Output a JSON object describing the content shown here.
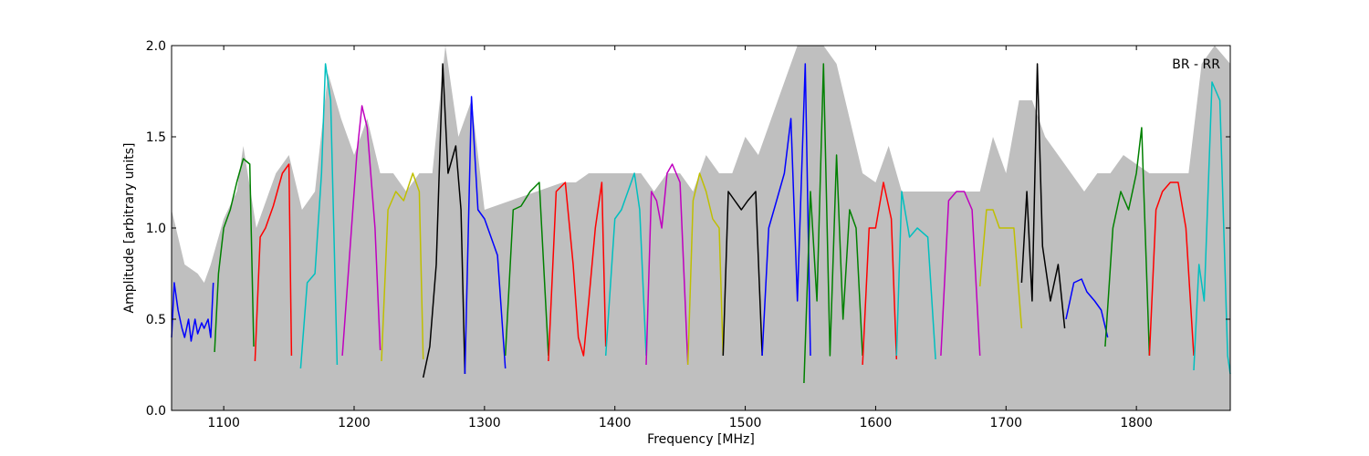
{
  "chart_data": {
    "type": "line",
    "title": "",
    "annotation": "BR - RR",
    "xlabel": "Frequency [MHz]",
    "ylabel": "Amplitude [arbitrary units]",
    "xlim": [
      1060,
      1872
    ],
    "ylim": [
      0.0,
      2.0
    ],
    "xticks": [
      1100,
      1200,
      1300,
      1400,
      1500,
      1600,
      1700,
      1800
    ],
    "yticks": [
      0.0,
      0.5,
      1.0,
      1.5,
      2.0
    ],
    "ytick_labels": [
      "0.0",
      "0.5",
      "1.0",
      "1.5",
      "2.0"
    ],
    "grid": false,
    "background_envelope": {
      "color": "#bfbfbf",
      "x": [
        1060,
        1070,
        1080,
        1085,
        1090,
        1100,
        1110,
        1115,
        1125,
        1135,
        1140,
        1150,
        1160,
        1170,
        1180,
        1190,
        1200,
        1210,
        1220,
        1230,
        1240,
        1250,
        1260,
        1270,
        1280,
        1290,
        1300,
        1320,
        1340,
        1360,
        1370,
        1380,
        1390,
        1400,
        1410,
        1420,
        1430,
        1440,
        1450,
        1460,
        1470,
        1480,
        1490,
        1500,
        1510,
        1520,
        1530,
        1540,
        1550,
        1560,
        1570,
        1580,
        1590,
        1600,
        1610,
        1620,
        1630,
        1640,
        1650,
        1660,
        1680,
        1690,
        1700,
        1710,
        1720,
        1730,
        1740,
        1750,
        1760,
        1770,
        1780,
        1790,
        1800,
        1810,
        1820,
        1830,
        1840,
        1850,
        1860,
        1872
      ],
      "y": [
        1.1,
        0.8,
        0.75,
        0.7,
        0.8,
        1.05,
        1.2,
        1.45,
        1.0,
        1.2,
        1.3,
        1.4,
        1.1,
        1.2,
        1.85,
        1.6,
        1.4,
        1.6,
        1.3,
        1.3,
        1.2,
        1.3,
        1.3,
        2.0,
        1.5,
        1.7,
        1.1,
        1.15,
        1.2,
        1.25,
        1.25,
        1.3,
        1.3,
        1.3,
        1.3,
        1.3,
        1.2,
        1.3,
        1.3,
        1.2,
        1.4,
        1.3,
        1.3,
        1.5,
        1.4,
        1.6,
        1.8,
        2.0,
        2.0,
        2.0,
        1.9,
        1.6,
        1.3,
        1.25,
        1.45,
        1.2,
        1.2,
        1.2,
        1.2,
        1.2,
        1.2,
        1.5,
        1.3,
        1.7,
        1.7,
        1.5,
        1.4,
        1.3,
        1.2,
        1.3,
        1.3,
        1.4,
        1.35,
        1.3,
        1.3,
        1.3,
        1.3,
        1.9,
        2.0,
        1.9
      ]
    },
    "series": [
      {
        "color": "#0000ff",
        "x": [
          1060,
          1062,
          1065,
          1068,
          1070,
          1073,
          1075,
          1078,
          1080,
          1083,
          1085,
          1088,
          1090,
          1092
        ],
        "y": [
          0.4,
          0.7,
          0.55,
          0.45,
          0.4,
          0.5,
          0.38,
          0.5,
          0.42,
          0.48,
          0.45,
          0.5,
          0.4,
          0.7
        ]
      },
      {
        "color": "#008000",
        "x": [
          1093,
          1096,
          1100,
          1105,
          1110,
          1115,
          1120,
          1123
        ],
        "y": [
          0.32,
          0.75,
          1.0,
          1.1,
          1.25,
          1.38,
          1.35,
          0.35
        ]
      },
      {
        "color": "#ff0000",
        "x": [
          1124,
          1128,
          1132,
          1138,
          1145,
          1150,
          1152
        ],
        "y": [
          0.27,
          0.95,
          1.0,
          1.12,
          1.3,
          1.35,
          0.3
        ]
      },
      {
        "color": "#00bfbf",
        "x": [
          1159,
          1164,
          1170,
          1175,
          1178,
          1182,
          1187
        ],
        "y": [
          0.23,
          0.7,
          0.75,
          1.3,
          1.9,
          1.7,
          0.25
        ]
      },
      {
        "color": "#bf00bf",
        "x": [
          1191,
          1196,
          1202,
          1206,
          1210,
          1216,
          1220
        ],
        "y": [
          0.3,
          0.8,
          1.4,
          1.67,
          1.55,
          1.0,
          0.33
        ]
      },
      {
        "color": "#bfbf00",
        "x": [
          1221,
          1226,
          1232,
          1238,
          1245,
          1250,
          1253
        ],
        "y": [
          0.27,
          1.1,
          1.2,
          1.15,
          1.3,
          1.2,
          0.28
        ]
      },
      {
        "color": "#000000",
        "x": [
          1253,
          1258,
          1263,
          1268,
          1272,
          1278,
          1282,
          1285
        ],
        "y": [
          0.18,
          0.35,
          0.8,
          1.9,
          1.3,
          1.45,
          1.1,
          0.2
        ]
      },
      {
        "color": "#0000ff",
        "x": [
          1285,
          1290,
          1295,
          1300,
          1305,
          1310,
          1316
        ],
        "y": [
          0.2,
          1.72,
          1.1,
          1.05,
          0.95,
          0.85,
          0.23
        ]
      },
      {
        "color": "#008000",
        "x": [
          1316,
          1322,
          1328,
          1335,
          1342,
          1349
        ],
        "y": [
          0.3,
          1.1,
          1.12,
          1.2,
          1.25,
          0.3
        ]
      },
      {
        "color": "#ff0000",
        "x": [
          1349,
          1355,
          1362,
          1368,
          1372,
          1376,
          1380,
          1385,
          1390,
          1393
        ],
        "y": [
          0.27,
          1.2,
          1.25,
          0.8,
          0.4,
          0.3,
          0.6,
          1.0,
          1.25,
          0.35
        ]
      },
      {
        "color": "#00bfbf",
        "x": [
          1393,
          1400,
          1405,
          1410,
          1415,
          1419,
          1424
        ],
        "y": [
          0.3,
          1.05,
          1.1,
          1.2,
          1.3,
          1.1,
          0.3
        ]
      },
      {
        "color": "#bf00bf",
        "x": [
          1424,
          1428,
          1432,
          1436,
          1440,
          1444,
          1450,
          1456
        ],
        "y": [
          0.25,
          1.2,
          1.15,
          1.0,
          1.3,
          1.35,
          1.25,
          0.25
        ]
      },
      {
        "color": "#bfbf00",
        "x": [
          1456,
          1460,
          1465,
          1470,
          1475,
          1480,
          1483
        ],
        "y": [
          0.25,
          1.15,
          1.3,
          1.2,
          1.05,
          1.0,
          0.3
        ]
      },
      {
        "color": "#000000",
        "x": [
          1483,
          1487,
          1492,
          1497,
          1502,
          1508,
          1513
        ],
        "y": [
          0.3,
          1.2,
          1.15,
          1.1,
          1.15,
          1.2,
          0.3
        ]
      },
      {
        "color": "#0000ff",
        "x": [
          1513,
          1518,
          1524,
          1530,
          1535,
          1540,
          1546,
          1550
        ],
        "y": [
          0.3,
          1.0,
          1.15,
          1.3,
          1.6,
          0.6,
          1.9,
          0.3
        ]
      },
      {
        "color": "#008000",
        "x": [
          1545,
          1550,
          1555,
          1560,
          1565,
          1570,
          1575,
          1580,
          1585,
          1590
        ],
        "y": [
          0.15,
          1.2,
          0.6,
          1.9,
          0.3,
          1.4,
          0.5,
          1.1,
          1.0,
          0.3
        ]
      },
      {
        "color": "#ff0000",
        "x": [
          1590,
          1595,
          1600,
          1606,
          1612,
          1616
        ],
        "y": [
          0.25,
          1.0,
          1.0,
          1.25,
          1.05,
          0.28
        ]
      },
      {
        "color": "#00bfbf",
        "x": [
          1616,
          1620,
          1626,
          1632,
          1640,
          1646
        ],
        "y": [
          0.3,
          1.2,
          0.95,
          1.0,
          0.95,
          0.28
        ]
      },
      {
        "color": "#bf00bf",
        "x": [
          1650,
          1656,
          1662,
          1668,
          1674,
          1680
        ],
        "y": [
          0.3,
          1.15,
          1.2,
          1.2,
          1.1,
          0.3
        ]
      },
      {
        "color": "#bfbf00",
        "x": [
          1680,
          1685,
          1690,
          1695,
          1700,
          1706,
          1712
        ],
        "y": [
          0.68,
          1.1,
          1.1,
          1.0,
          1.0,
          1.0,
          0.45
        ]
      },
      {
        "color": "#000000",
        "x": [
          1712,
          1716,
          1720,
          1724,
          1728,
          1734,
          1740,
          1745
        ],
        "y": [
          0.7,
          1.2,
          0.6,
          1.9,
          0.9,
          0.6,
          0.8,
          0.45
        ]
      },
      {
        "color": "#0000ff",
        "x": [
          1746,
          1752,
          1758,
          1762,
          1768,
          1773,
          1778
        ],
        "y": [
          0.5,
          0.7,
          0.72,
          0.65,
          0.6,
          0.55,
          0.4
        ]
      },
      {
        "color": "#008000",
        "x": [
          1776,
          1782,
          1788,
          1794,
          1800,
          1804,
          1810
        ],
        "y": [
          0.35,
          1.0,
          1.2,
          1.1,
          1.3,
          1.55,
          0.3
        ]
      },
      {
        "color": "#ff0000",
        "x": [
          1810,
          1815,
          1820,
          1826,
          1832,
          1838,
          1844
        ],
        "y": [
          0.3,
          1.1,
          1.2,
          1.25,
          1.25,
          1.0,
          0.3
        ]
      },
      {
        "color": "#00bfbf",
        "x": [
          1844,
          1848,
          1852,
          1858,
          1864,
          1870,
          1872
        ],
        "y": [
          0.22,
          0.8,
          0.6,
          1.8,
          1.7,
          0.3,
          0.2
        ]
      }
    ]
  }
}
